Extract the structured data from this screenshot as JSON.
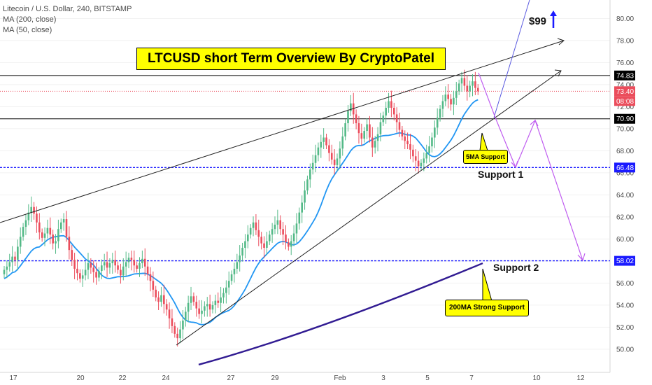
{
  "header": {
    "symbol_line": "Litecoin / U.S. Dollar, 240, BITSTAMP",
    "ma200_label": "MA (200, close)",
    "ma50_label": "MA (50, close)"
  },
  "annotations": {
    "title": "LTCUSD short Term Overview By CryptoPatel",
    "target_label": "$99",
    "ma5_callout": "5MA Support",
    "ma200_callout": "200MA Strong Support",
    "support1": "Support 1",
    "support2": "Support 2"
  },
  "price_tags": {
    "resistance": "74.83",
    "last_price": "73.40",
    "countdown": "08:08",
    "level_mid": "70.90",
    "support1": "66.48",
    "support2": "58.02"
  },
  "colors": {
    "up_candle": "#53b987",
    "down_candle": "#eb4d5c",
    "ma50": "#2196f3",
    "ma200": "#311b92",
    "dotted_blue": "#1a1aff",
    "projection": "#c05ef0",
    "target_arrow": "#1a1aff",
    "highlight": "#ffff00"
  },
  "chart_data": {
    "type": "candlestick",
    "title": "Litecoin / U.S. Dollar, 240, BITSTAMP",
    "y_axis": {
      "ticks": [
        "50.00",
        "52.00",
        "54.00",
        "56.00",
        "58.00",
        "60.00",
        "62.00",
        "64.00",
        "66.00",
        "68.00",
        "70.00",
        "72.00",
        "74.00",
        "76.00",
        "78.00",
        "80.00"
      ],
      "ylim": [
        48.5,
        81.5
      ]
    },
    "x_axis": {
      "ticks": [
        "17",
        "20",
        "22",
        "24",
        "27",
        "29",
        "Feb",
        "3",
        "5",
        "7",
        "10",
        "12"
      ]
    },
    "horizontal_levels": [
      {
        "label": "74.83",
        "value": 74.83,
        "style": "solid"
      },
      {
        "label": "73.40",
        "value": 73.4,
        "style": "dotted"
      },
      {
        "label": "70.90",
        "value": 70.9,
        "style": "solid"
      },
      {
        "label": "66.48",
        "value": 66.48,
        "style": "dashed"
      },
      {
        "label": "58.02",
        "value": 58.02,
        "style": "dashed"
      }
    ],
    "candles_close": [
      57.2,
      57.5,
      57.9,
      58.4,
      58.1,
      59.3,
      60.2,
      61.1,
      61.7,
      62.4,
      62.9,
      62.3,
      61.5,
      60.6,
      60.1,
      60.5,
      61.0,
      60.4,
      59.6,
      59.8,
      60.9,
      61.5,
      61.8,
      60.2,
      59.0,
      58.1,
      57.3,
      56.9,
      56.4,
      56.7,
      57.2,
      57.8,
      57.4,
      57.0,
      56.5,
      57.1,
      57.6,
      57.9,
      57.4,
      57.8,
      58.1,
      57.6,
      57.2,
      56.7,
      57.5,
      57.9,
      58.3,
      58.1,
      57.6,
      57.3,
      57.8,
      58.2,
      57.5,
      56.8,
      56.2,
      55.4,
      54.7,
      54.3,
      54.9,
      54.1,
      53.6,
      52.8,
      52.1,
      51.4,
      51.0,
      51.8,
      52.6,
      53.4,
      54.2,
      54.8,
      54.3,
      53.7,
      53.2,
      53.5,
      53.9,
      54.1,
      53.6,
      54.0,
      54.4,
      54.2,
      54.7,
      55.1,
      55.6,
      56.2,
      56.8,
      57.3,
      57.9,
      58.5,
      59.2,
      59.8,
      60.4,
      61.0,
      61.5,
      60.8,
      60.2,
      59.6,
      59.2,
      59.8,
      60.4,
      60.9,
      61.3,
      61.7,
      60.9,
      60.4,
      59.7,
      59.3,
      59.8,
      60.5,
      61.4,
      62.4,
      63.3,
      64.4,
      65.4,
      66.3,
      66.9,
      67.6,
      68.3,
      68.8,
      69.2,
      68.5,
      67.8,
      67.2,
      66.7,
      67.3,
      68.2,
      69.3,
      70.5,
      71.6,
      72.3,
      71.3,
      70.5,
      69.6,
      69.1,
      69.8,
      70.4,
      69.2,
      68.3,
      68.9,
      69.5,
      70.6,
      71.2,
      71.9,
      72.5,
      71.9,
      71.3,
      70.6,
      69.9,
      69.3,
      68.9,
      68.6,
      68.1,
      67.5,
      67.1,
      66.6,
      66.9,
      67.3,
      67.8,
      68.4,
      69.2,
      70.1,
      71.0,
      71.8,
      72.5,
      73.1,
      72.7,
      72.2,
      72.8,
      73.4,
      74.1,
      74.6,
      73.9,
      73.4,
      73.9,
      74.3,
      73.7,
      73.4
    ]
  }
}
